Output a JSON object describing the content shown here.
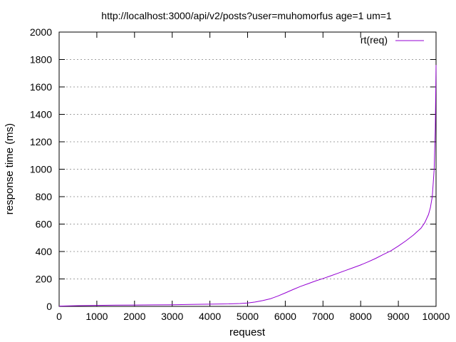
{
  "chart_data": {
    "type": "line",
    "title": "http://localhost:3000/api/v2/posts?user=muhomorfus  age=1  um=1",
    "xlabel": "request",
    "ylabel": "response time (ms)",
    "xlim": [
      0,
      10000
    ],
    "ylim": [
      0,
      2000
    ],
    "xticks": [
      0,
      1000,
      2000,
      3000,
      4000,
      5000,
      6000,
      7000,
      8000,
      9000,
      10000
    ],
    "yticks": [
      0,
      200,
      400,
      600,
      800,
      1000,
      1200,
      1400,
      1600,
      1800,
      2000
    ],
    "grid": "horizontal dotted",
    "legend_position": "top-right",
    "series": [
      {
        "name": "rt(req)",
        "color": "#9400d3",
        "x": [
          0,
          500,
          1000,
          1500,
          2000,
          2500,
          3000,
          3500,
          4000,
          4500,
          4800,
          5000,
          5200,
          5400,
          5600,
          5800,
          6000,
          6200,
          6400,
          6600,
          6800,
          7000,
          7200,
          7400,
          7600,
          7800,
          8000,
          8200,
          8400,
          8600,
          8800,
          9000,
          9200,
          9400,
          9600,
          9700,
          9800,
          9850,
          9900,
          9950,
          9980,
          10000
        ],
        "y": [
          2,
          5,
          7,
          9,
          10,
          11,
          12,
          14,
          16,
          18,
          21,
          25,
          32,
          42,
          55,
          75,
          98,
          122,
          145,
          165,
          185,
          203,
          222,
          242,
          262,
          282,
          302,
          325,
          350,
          378,
          405,
          440,
          478,
          520,
          570,
          610,
          670,
          720,
          800,
          1000,
          1300,
          1760
        ]
      }
    ]
  }
}
